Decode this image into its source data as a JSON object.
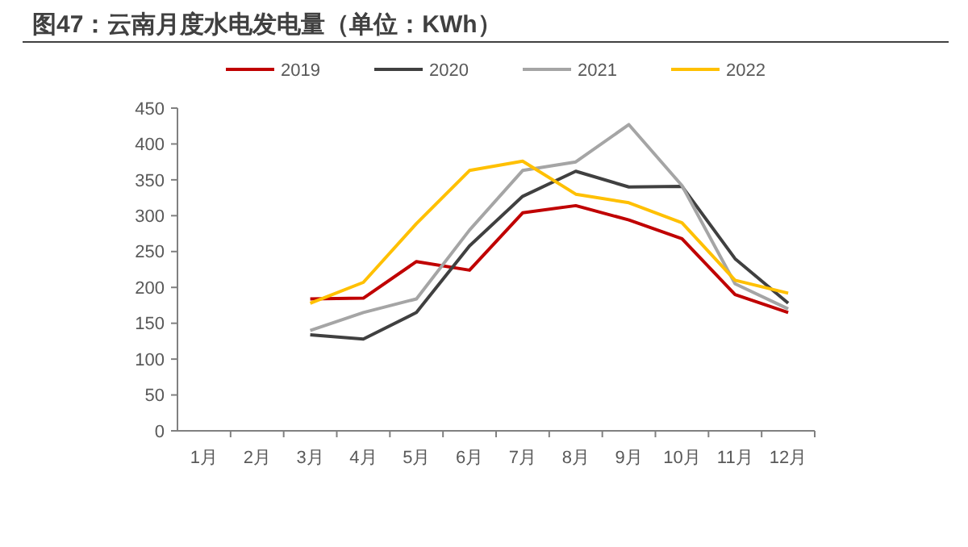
{
  "chart_data": {
    "type": "line",
    "title": "图47：云南月度水电发电量（单位：KWh）",
    "categories": [
      "1月",
      "2月",
      "3月",
      "4月",
      "5月",
      "6月",
      "7月",
      "8月",
      "9月",
      "10月",
      "11月",
      "12月"
    ],
    "series": [
      {
        "name": "2019",
        "color": "#c00000",
        "values": [
          null,
          null,
          184,
          185,
          236,
          224,
          304,
          314,
          294,
          268,
          190,
          165
        ]
      },
      {
        "name": "2020",
        "color": "#404040",
        "values": [
          null,
          null,
          134,
          128,
          165,
          258,
          327,
          362,
          340,
          341,
          240,
          178
        ]
      },
      {
        "name": "2021",
        "color": "#a5a5a5",
        "values": [
          null,
          null,
          140,
          165,
          184,
          280,
          363,
          375,
          427,
          342,
          205,
          170
        ]
      },
      {
        "name": "2022",
        "color": "#ffc000",
        "values": [
          null,
          null,
          178,
          207,
          289,
          363,
          376,
          330,
          318,
          290,
          210,
          192
        ]
      }
    ],
    "ylim": [
      0,
      450
    ],
    "yticks": [
      0,
      50,
      100,
      150,
      200,
      250,
      300,
      350,
      400,
      450
    ],
    "grid": false,
    "legend": "top",
    "line_style": "solid",
    "marker": "none"
  }
}
